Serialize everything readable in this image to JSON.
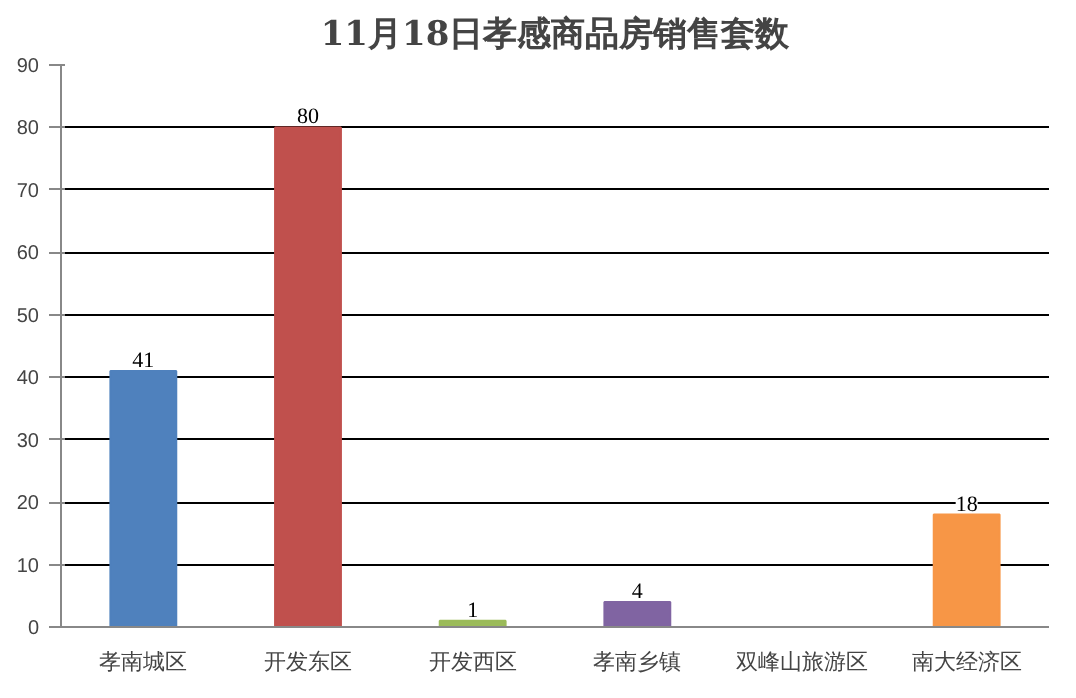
{
  "chart_data": {
    "type": "bar",
    "title": "11月18日孝感商品房销售套数",
    "categories": [
      "孝南城区",
      "开发东区",
      "开发西区",
      "孝南乡镇",
      "双峰山旅游区",
      "南大经济区"
    ],
    "values": [
      41,
      80,
      1,
      4,
      0,
      18
    ],
    "colors": [
      "#4f81bd",
      "#c0504d",
      "#9bbb59",
      "#8064a2",
      "#4bacc6",
      "#f79646"
    ],
    "value_labels": [
      "41",
      "80",
      "1",
      "4",
      null,
      "18"
    ],
    "ylim": [
      0,
      90
    ],
    "yticks": [
      0,
      10,
      20,
      30,
      40,
      50,
      60,
      70,
      80,
      90
    ],
    "grid": "y"
  }
}
